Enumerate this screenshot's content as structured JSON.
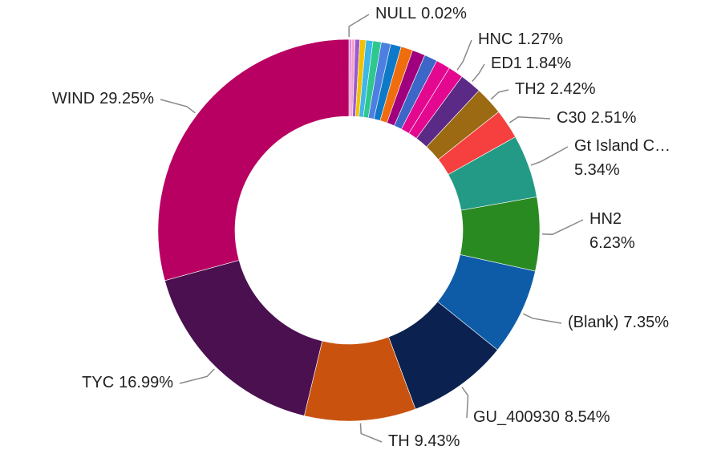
{
  "chart_data": {
    "type": "donut",
    "categories": [
      "NULL",
      null,
      null,
      null,
      null,
      null,
      null,
      null,
      null,
      null,
      null,
      null,
      null,
      "HNC",
      "ED1",
      "TH2",
      "C30",
      "Gt Island C…",
      "HN2",
      "(Blank)",
      "GU_400930",
      "TH",
      "TYC",
      "WIND"
    ],
    "values": [
      0.02,
      0.2,
      0.3,
      0.4,
      0.5,
      0.6,
      0.7,
      0.8,
      0.9,
      1.0,
      1.1,
      1.1,
      1.21,
      1.27,
      1.84,
      2.42,
      2.51,
      5.34,
      6.23,
      7.35,
      8.54,
      9.43,
      16.99,
      29.25
    ],
    "value_labels": [
      "0.02%",
      null,
      null,
      null,
      null,
      null,
      null,
      null,
      null,
      null,
      null,
      null,
      null,
      "1.27%",
      "1.84%",
      "2.42%",
      "2.51%",
      "5.34%",
      "6.23%",
      "7.35%",
      "8.54%",
      "9.43%",
      "16.99%",
      "29.25%"
    ],
    "colors": [
      "#555555",
      "#e07be0",
      "#f4a3c8",
      "#9b59d0",
      "#f2c200",
      "#3fb6e8",
      "#2ec88e",
      "#4d7fe0",
      "#0e79c9",
      "#f06d0d",
      "#a0007e",
      "#3c67c8",
      "#e3088f",
      "#e3088f",
      "#5b2a86",
      "#9c6a12",
      "#f5403f",
      "#239a86",
      "#2a8a22",
      "#0e5ca8",
      "#0b2150",
      "#c9520f",
      "#4a1050",
      "#b80062"
    ]
  }
}
